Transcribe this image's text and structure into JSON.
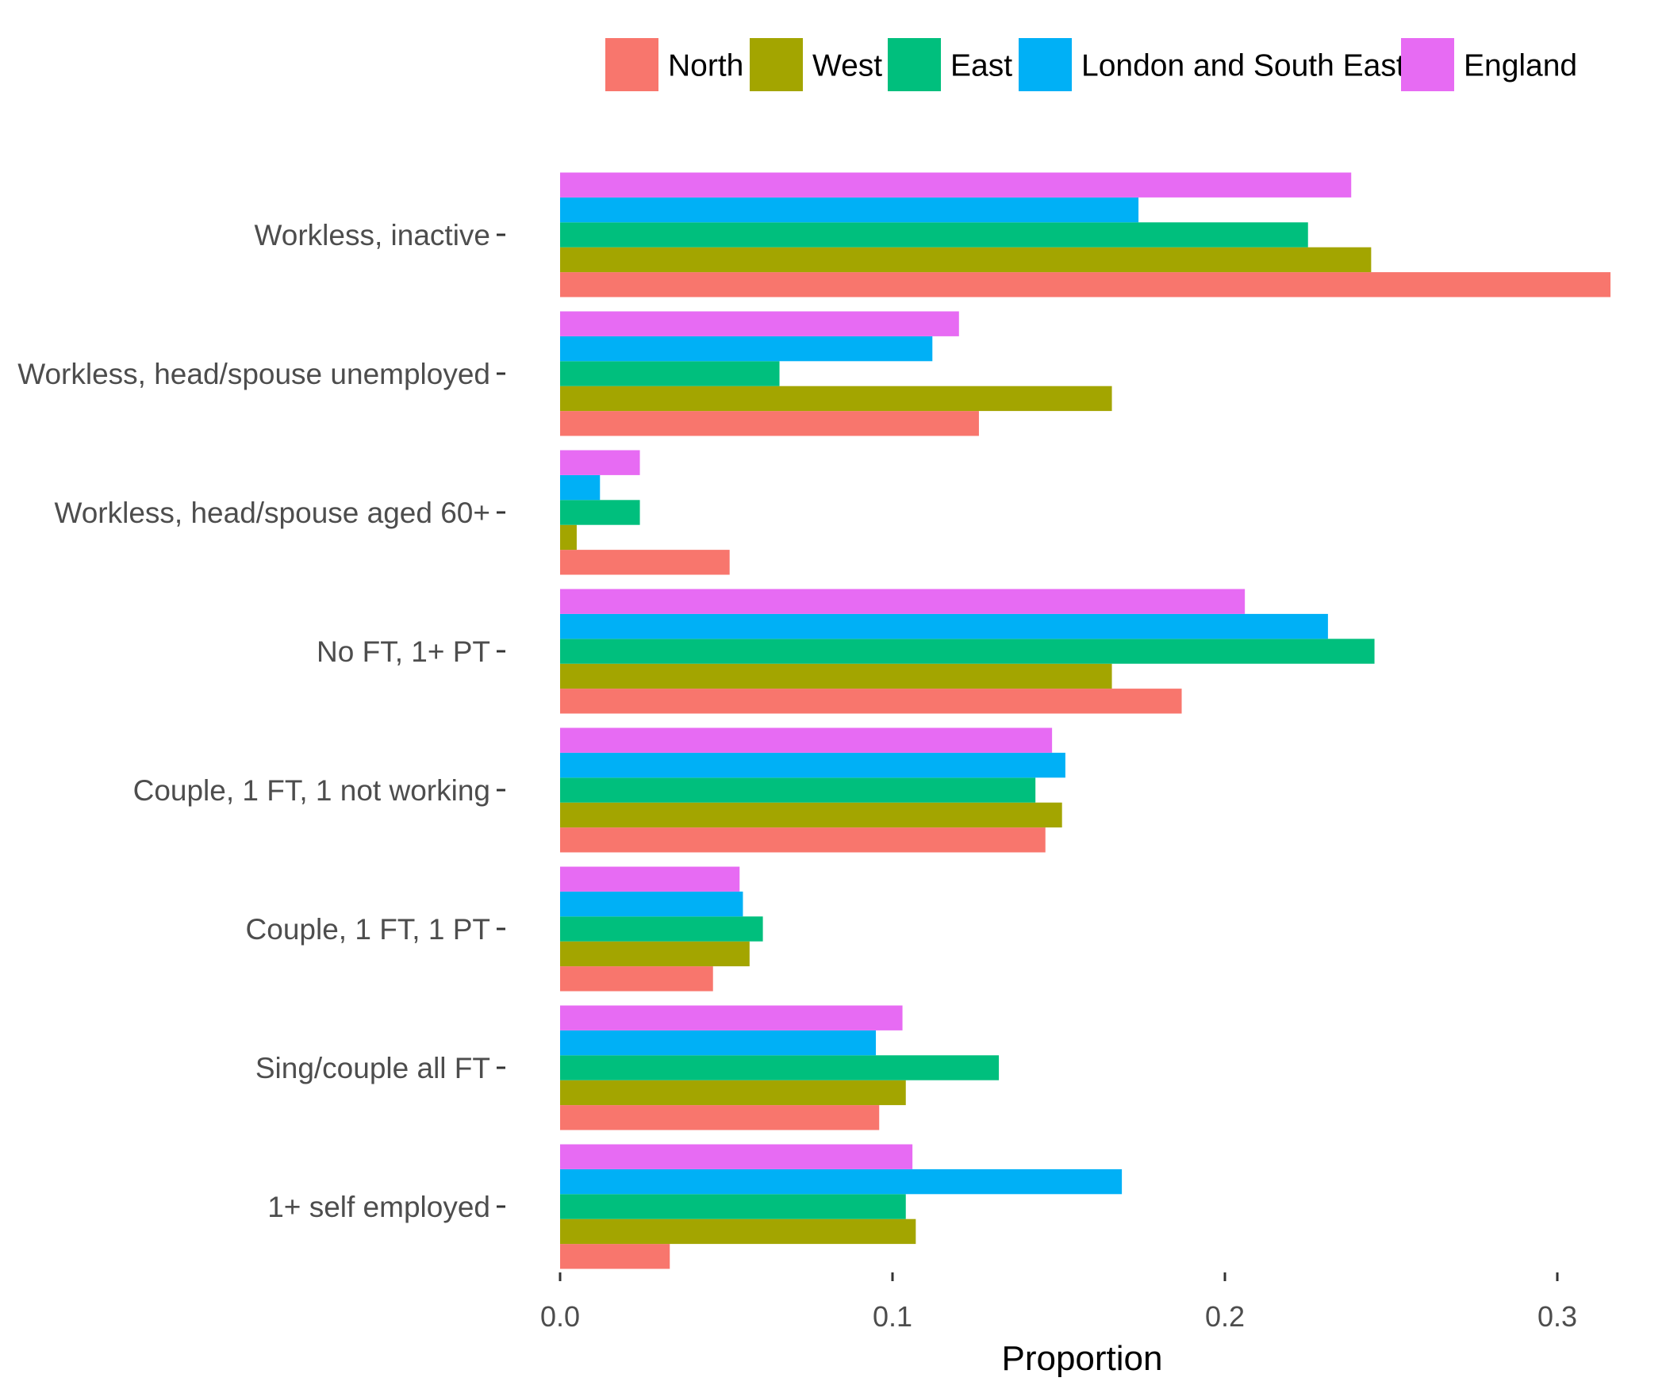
{
  "chart_data": {
    "type": "bar",
    "orientation": "horizontal",
    "title": "",
    "xlabel": "Proportion",
    "ylabel": "",
    "xlim": [
      0,
      0.32
    ],
    "xticks": [
      0,
      0.1,
      0.2,
      0.3
    ],
    "xtick_labels": [
      "0.0",
      "0.1",
      "0.2",
      "0.3"
    ],
    "grid": false,
    "legend_position": "top",
    "categories": [
      "Workless, inactive",
      "Workless, head/spouse unemployed",
      "Workless, head/spouse aged 60+",
      "No FT, 1+ PT",
      "Couple, 1 FT, 1 not working",
      "Couple, 1 FT, 1 PT",
      "Sing/couple all FT",
      "1+ self employed"
    ],
    "series": [
      {
        "name": "North",
        "color": "#F8766D",
        "values": [
          0.316,
          0.126,
          0.051,
          0.187,
          0.146,
          0.046,
          0.096,
          0.033
        ]
      },
      {
        "name": "West",
        "color": "#A3A500",
        "values": [
          0.244,
          0.166,
          0.005,
          0.166,
          0.151,
          0.057,
          0.104,
          0.107
        ]
      },
      {
        "name": "East",
        "color": "#00BF7D",
        "values": [
          0.225,
          0.066,
          0.024,
          0.245,
          0.143,
          0.061,
          0.132,
          0.104
        ]
      },
      {
        "name": "London and South East",
        "color": "#00B0F6",
        "values": [
          0.174,
          0.112,
          0.012,
          0.231,
          0.152,
          0.055,
          0.095,
          0.169
        ]
      },
      {
        "name": "England",
        "color": "#E76BF3",
        "values": [
          0.238,
          0.12,
          0.024,
          0.206,
          0.148,
          0.054,
          0.103,
          0.106
        ]
      }
    ]
  }
}
